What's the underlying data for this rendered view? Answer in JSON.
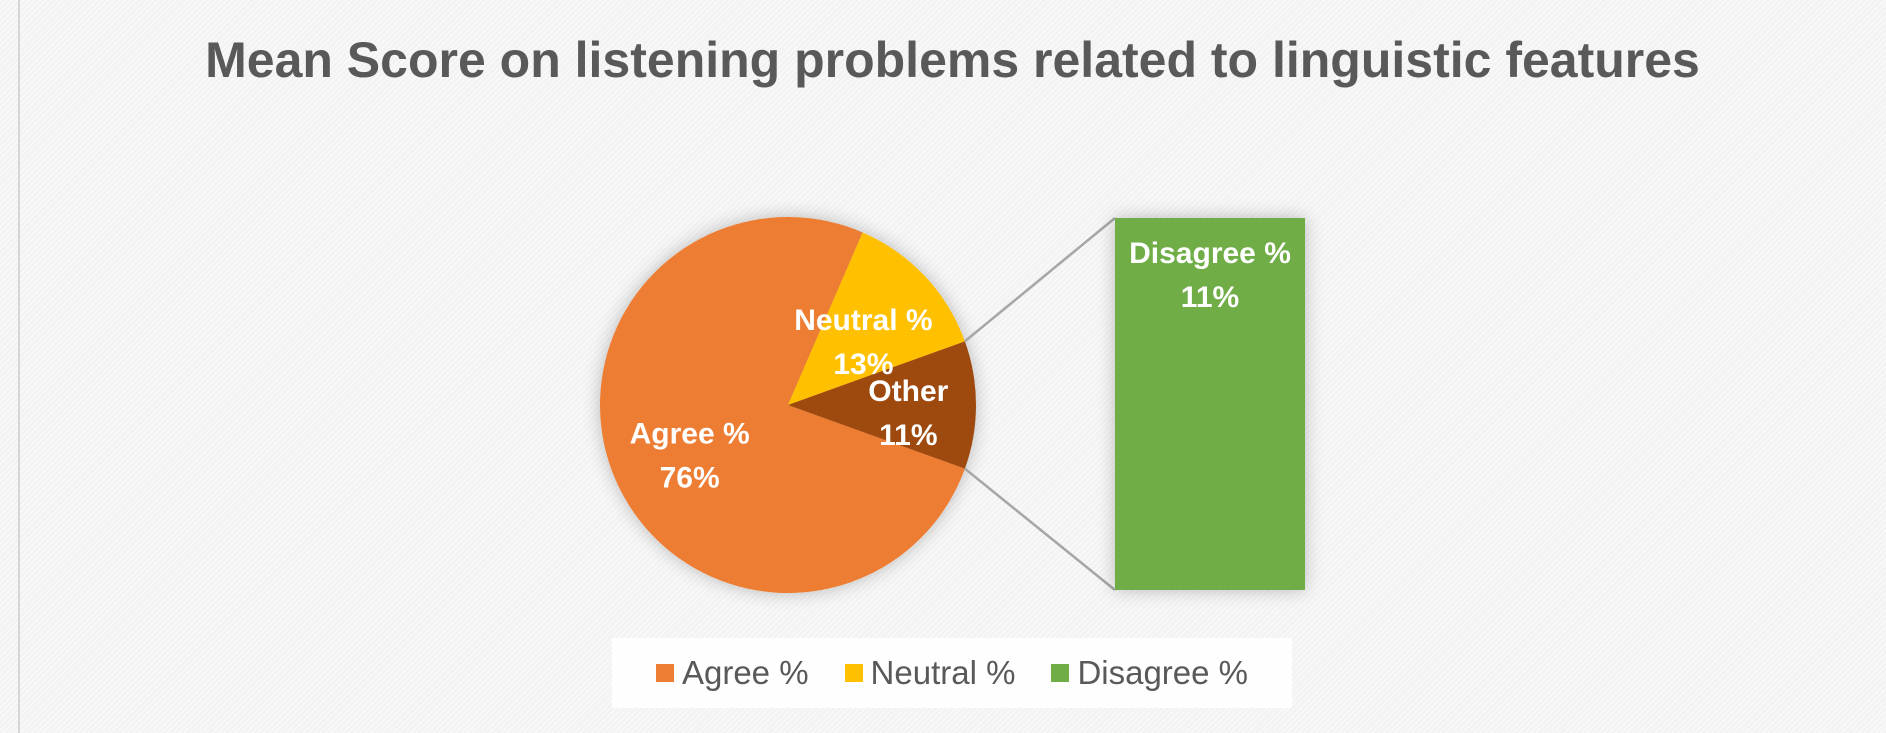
{
  "chart_data": {
    "type": "pie",
    "title": "Mean Score on listening problems related to linguistic features",
    "variant": "bar-of-pie",
    "slices": [
      {
        "name": "Agree %",
        "value": 76,
        "color": "#ED7D31",
        "label_name": "Agree %",
        "label_value": "76%"
      },
      {
        "name": "Neutral %",
        "value": 13,
        "color": "#FFC000",
        "label_name": "Neutral %",
        "label_value": "13%"
      },
      {
        "name": "Other",
        "value": 11,
        "color": "#9E480E",
        "label_name": "Other",
        "label_value": "11%"
      }
    ],
    "secondary_bar": [
      {
        "name": "Disagree %",
        "value": 11,
        "color": "#70AD47",
        "label_name": "Disagree %",
        "label_value": "11%"
      }
    ],
    "legend": [
      {
        "label": "Agree %",
        "color": "#ED7D31"
      },
      {
        "label": "Neutral %",
        "color": "#FFC000"
      },
      {
        "label": "Disagree %",
        "color": "#70AD47"
      }
    ],
    "legend_position": "bottom"
  }
}
